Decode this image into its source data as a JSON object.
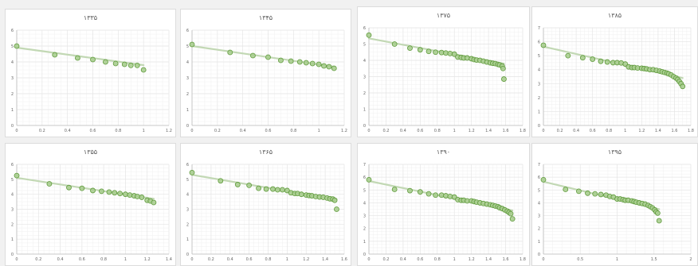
{
  "style": {
    "marker_fill": "#a9cd8f",
    "marker_stroke": "#5f9a3c",
    "trend_color": "#c2d8b4",
    "grid_color": "#e6e6e6"
  },
  "chart_data": [
    {
      "type": "scatter",
      "title": "۱۳۳۵",
      "x_ticks": [
        "0",
        "0.2",
        "0.4",
        "0.6",
        "0.8",
        "1",
        "1.2"
      ],
      "y_ticks": [
        "0",
        "1",
        "2",
        "3",
        "4",
        "5",
        "6"
      ],
      "xlim": [
        0,
        1.2
      ],
      "ylim": [
        0,
        6
      ],
      "x": [
        0,
        0.3,
        0.48,
        0.6,
        0.7,
        0.78,
        0.85,
        0.9,
        0.95,
        1.0
      ],
      "y": [
        5.0,
        4.45,
        4.25,
        4.15,
        4.0,
        3.9,
        3.85,
        3.78,
        3.78,
        3.5
      ],
      "trend": [
        [
          0,
          4.9
        ],
        [
          1.0,
          3.8
        ]
      ]
    },
    {
      "type": "scatter",
      "title": "۱۳۴۵",
      "x_ticks": [
        "0",
        "0.2",
        "0.4",
        "0.6",
        "0.8",
        "1",
        "1.2"
      ],
      "y_ticks": [
        "0",
        "1",
        "2",
        "3",
        "4",
        "5",
        "6"
      ],
      "xlim": [
        0,
        1.2
      ],
      "ylim": [
        0,
        6
      ],
      "x": [
        0,
        0.3,
        0.48,
        0.6,
        0.7,
        0.78,
        0.85,
        0.9,
        0.95,
        1.0,
        1.04,
        1.08,
        1.12
      ],
      "y": [
        5.1,
        4.6,
        4.4,
        4.3,
        4.1,
        4.05,
        4.0,
        3.95,
        3.9,
        3.85,
        3.75,
        3.7,
        3.6
      ],
      "trend": [
        [
          0,
          5.0
        ],
        [
          1.12,
          3.7
        ]
      ]
    },
    {
      "type": "scatter",
      "title": "۱۳۷۵",
      "x_ticks": [
        "0",
        "0.2",
        "0.4",
        "0.6",
        "0.8",
        "1",
        "1.2",
        "1.4",
        "1.6",
        "1.8"
      ],
      "y_ticks": [
        "0",
        "1",
        "2",
        "3",
        "4",
        "5",
        "6"
      ],
      "xlim": [
        0,
        1.8
      ],
      "ylim": [
        0,
        6
      ],
      "x": [
        0,
        0.3,
        0.48,
        0.6,
        0.7,
        0.78,
        0.85,
        0.9,
        0.95,
        1.0,
        1.04,
        1.08,
        1.11,
        1.15,
        1.2,
        1.23,
        1.26,
        1.3,
        1.34,
        1.38,
        1.42,
        1.45,
        1.48,
        1.51,
        1.53,
        1.56,
        1.57,
        1.58
      ],
      "y": [
        5.55,
        5.0,
        4.75,
        4.65,
        4.55,
        4.5,
        4.48,
        4.45,
        4.42,
        4.38,
        4.2,
        4.18,
        4.15,
        4.15,
        4.1,
        4.05,
        4.02,
        4.0,
        3.95,
        3.9,
        3.85,
        3.82,
        3.8,
        3.75,
        3.72,
        3.65,
        3.5,
        2.85
      ],
      "trend": [
        [
          0,
          5.35
        ],
        [
          1.58,
          3.8
        ]
      ]
    },
    {
      "type": "scatter",
      "title": "۱۳۸۵",
      "x_ticks": [
        "0",
        "0.2",
        "0.4",
        "0.6",
        "0.8",
        "1",
        "1.2",
        "1.4",
        "1.6",
        "1.8"
      ],
      "y_ticks": [
        "0",
        "1",
        "2",
        "3",
        "4",
        "5",
        "6",
        "7"
      ],
      "xlim": [
        0,
        1.8
      ],
      "ylim": [
        0,
        7
      ],
      "x": [
        0,
        0.3,
        0.48,
        0.6,
        0.7,
        0.78,
        0.85,
        0.9,
        0.95,
        1.0,
        1.04,
        1.08,
        1.11,
        1.15,
        1.2,
        1.23,
        1.26,
        1.3,
        1.34,
        1.38,
        1.42,
        1.45,
        1.48,
        1.51,
        1.53,
        1.56,
        1.59,
        1.62,
        1.64,
        1.66,
        1.68,
        1.7
      ],
      "y": [
        5.75,
        5.0,
        4.85,
        4.75,
        4.6,
        4.55,
        4.5,
        4.5,
        4.48,
        4.4,
        4.2,
        4.15,
        4.15,
        4.12,
        4.1,
        4.08,
        4.05,
        4.0,
        4.0,
        3.95,
        3.9,
        3.85,
        3.8,
        3.75,
        3.7,
        3.62,
        3.5,
        3.4,
        3.3,
        3.15,
        3.0,
        2.8
      ],
      "trend": [
        [
          0,
          5.65
        ],
        [
          1.7,
          3.4
        ]
      ]
    },
    {
      "type": "scatter",
      "title": "۱۳۵۵",
      "x_ticks": [
        "0",
        "0.2",
        "0.4",
        "0.6",
        "0.8",
        "1",
        "1.2",
        "1.4"
      ],
      "y_ticks": [
        "0",
        "1",
        "2",
        "3",
        "4",
        "5",
        "6"
      ],
      "xlim": [
        0,
        1.4
      ],
      "ylim": [
        0,
        6
      ],
      "x": [
        0,
        0.3,
        0.48,
        0.6,
        0.7,
        0.78,
        0.85,
        0.9,
        0.95,
        1.0,
        1.04,
        1.08,
        1.11,
        1.15,
        1.2,
        1.23,
        1.26
      ],
      "y": [
        5.25,
        4.7,
        4.45,
        4.4,
        4.25,
        4.2,
        4.15,
        4.1,
        4.05,
        4.0,
        3.95,
        3.9,
        3.85,
        3.8,
        3.6,
        3.55,
        3.45
      ],
      "trend": [
        [
          0,
          5.1
        ],
        [
          1.26,
          3.7
        ]
      ]
    },
    {
      "type": "scatter",
      "title": "۱۳۶۵",
      "x_ticks": [
        "0",
        "0.2",
        "0.4",
        "0.6",
        "0.8",
        "1",
        "1.2",
        "1.4",
        "1.6"
      ],
      "y_ticks": [
        "0",
        "1",
        "2",
        "3",
        "4",
        "5",
        "6"
      ],
      "xlim": [
        0,
        1.6
      ],
      "ylim": [
        0,
        6
      ],
      "x": [
        0,
        0.3,
        0.48,
        0.6,
        0.7,
        0.78,
        0.85,
        0.9,
        0.95,
        1.0,
        1.04,
        1.08,
        1.11,
        1.15,
        1.2,
        1.23,
        1.26,
        1.3,
        1.34,
        1.38,
        1.42,
        1.45,
        1.48,
        1.5,
        1.52
      ],
      "y": [
        5.45,
        4.9,
        4.65,
        4.6,
        4.4,
        4.35,
        4.35,
        4.3,
        4.3,
        4.25,
        4.1,
        4.05,
        4.05,
        4.0,
        3.95,
        3.92,
        3.9,
        3.85,
        3.82,
        3.8,
        3.75,
        3.7,
        3.68,
        3.6,
        3.0
      ],
      "trend": [
        [
          0,
          5.3
        ],
        [
          1.52,
          3.65
        ]
      ]
    },
    {
      "type": "scatter",
      "title": "۱۳۹۰",
      "x_ticks": [
        "0",
        "0.2",
        "0.4",
        "0.6",
        "0.8",
        "1",
        "1.2",
        "1.4",
        "1.6",
        "1.8"
      ],
      "y_ticks": [
        "0",
        "1",
        "2",
        "3",
        "4",
        "5",
        "6",
        "7"
      ],
      "xlim": [
        0,
        1.8
      ],
      "ylim": [
        0,
        7
      ],
      "x": [
        0,
        0.3,
        0.48,
        0.6,
        0.7,
        0.78,
        0.85,
        0.9,
        0.95,
        1.0,
        1.04,
        1.08,
        1.11,
        1.15,
        1.2,
        1.23,
        1.26,
        1.3,
        1.34,
        1.38,
        1.42,
        1.45,
        1.48,
        1.51,
        1.53,
        1.56,
        1.59,
        1.62,
        1.64,
        1.66,
        1.68
      ],
      "y": [
        5.8,
        5.05,
        4.95,
        4.85,
        4.7,
        4.6,
        4.6,
        4.55,
        4.5,
        4.45,
        4.25,
        4.2,
        4.2,
        4.15,
        4.15,
        4.1,
        4.05,
        4.0,
        3.95,
        3.9,
        3.85,
        3.8,
        3.75,
        3.7,
        3.62,
        3.55,
        3.45,
        3.35,
        3.25,
        3.15,
        2.75
      ],
      "trend": [
        [
          0,
          5.7
        ],
        [
          1.68,
          3.4
        ]
      ]
    },
    {
      "type": "scatter",
      "title": "۱۳۹۵",
      "x_ticks": [
        "0",
        "0.5",
        "1",
        "1.5",
        "2"
      ],
      "y_ticks": [
        "0",
        "1",
        "2",
        "3",
        "4",
        "5",
        "6",
        "7"
      ],
      "xlim": [
        0,
        2
      ],
      "ylim": [
        0,
        7
      ],
      "x": [
        0,
        0.3,
        0.48,
        0.6,
        0.7,
        0.78,
        0.85,
        0.9,
        0.95,
        1.0,
        1.04,
        1.08,
        1.11,
        1.15,
        1.2,
        1.23,
        1.26,
        1.3,
        1.34,
        1.38,
        1.42,
        1.45,
        1.48,
        1.51,
        1.53,
        1.55,
        1.57
      ],
      "y": [
        5.8,
        5.05,
        4.9,
        4.75,
        4.7,
        4.65,
        4.6,
        4.5,
        4.45,
        4.3,
        4.3,
        4.25,
        4.2,
        4.2,
        4.15,
        4.1,
        4.05,
        4.0,
        3.95,
        3.9,
        3.8,
        3.7,
        3.6,
        3.45,
        3.3,
        3.2,
        2.6
      ],
      "trend": [
        [
          0,
          5.65
        ],
        [
          1.57,
          3.5
        ]
      ]
    }
  ]
}
